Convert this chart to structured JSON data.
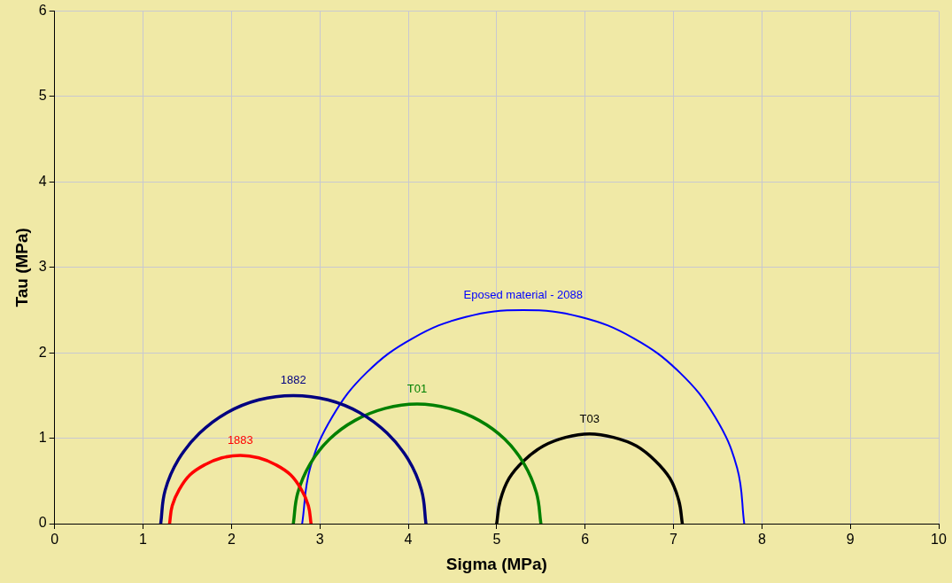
{
  "chart_data": {
    "type": "line",
    "xlabel": "Sigma (MPa)",
    "ylabel": "Tau (MPa)",
    "xlim": [
      0,
      10
    ],
    "xticks": [
      0,
      1,
      2,
      3,
      4,
      5,
      6,
      7,
      8,
      9,
      10
    ],
    "ylim": [
      0,
      6
    ],
    "yticks": [
      0,
      1,
      2,
      3,
      4,
      5,
      6
    ],
    "grid": true,
    "legend": false,
    "marker": "none",
    "line_style": "solid",
    "series": [
      {
        "name": "1882",
        "color": "#000080",
        "x": [
          1.2,
          1.25,
          1.4,
          1.64,
          1.95,
          2.31,
          2.7,
          3.09,
          3.45,
          3.76,
          4.0,
          4.15,
          4.2
        ],
        "values": [
          0,
          0.39,
          0.75,
          1.06,
          1.3,
          1.45,
          1.5,
          1.45,
          1.3,
          1.06,
          0.75,
          0.39,
          0
        ]
      },
      {
        "name": "1883",
        "color": "#ff0000",
        "x": [
          1.3,
          1.33,
          1.41,
          1.53,
          1.7,
          1.89,
          2.1,
          2.31,
          2.5,
          2.67,
          2.79,
          2.87,
          2.9
        ],
        "values": [
          0,
          0.21,
          0.4,
          0.57,
          0.69,
          0.77,
          0.8,
          0.77,
          0.69,
          0.57,
          0.4,
          0.21,
          0
        ]
      },
      {
        "name": "T01",
        "color": "#008000",
        "x": [
          2.7,
          2.75,
          2.89,
          3.11,
          3.4,
          3.74,
          4.1,
          4.46,
          4.8,
          5.09,
          5.31,
          5.45,
          5.5
        ],
        "values": [
          0,
          0.36,
          0.7,
          0.99,
          1.21,
          1.35,
          1.4,
          1.35,
          1.21,
          0.99,
          0.7,
          0.36,
          0
        ]
      },
      {
        "name": "T03",
        "color": "#000000",
        "x": [
          5.0,
          5.04,
          5.14,
          5.31,
          5.53,
          5.78,
          6.05,
          6.32,
          6.58,
          6.79,
          6.96,
          7.06,
          7.1
        ],
        "values": [
          0,
          0.27,
          0.53,
          0.74,
          0.91,
          1.01,
          1.05,
          1.01,
          0.91,
          0.74,
          0.53,
          0.27,
          0
        ]
      },
      {
        "name": "Eposed material - 2088",
        "color": "#0000ff",
        "x": [
          2.8,
          2.89,
          3.14,
          3.53,
          4.05,
          4.65,
          5.3,
          5.95,
          6.55,
          7.07,
          7.47,
          7.72,
          7.8
        ],
        "values": [
          0,
          0.65,
          1.25,
          1.77,
          2.17,
          2.42,
          2.5,
          2.42,
          2.17,
          1.77,
          1.25,
          0.65,
          0
        ]
      }
    ]
  }
}
